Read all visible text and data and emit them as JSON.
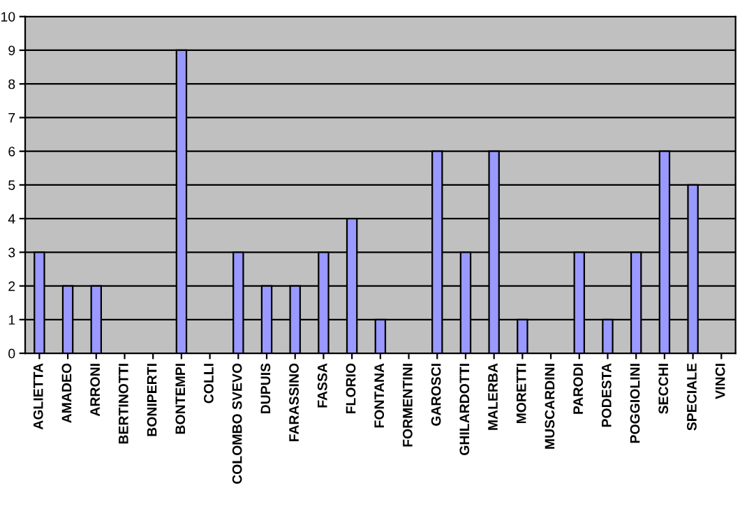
{
  "chart_data": {
    "type": "bar",
    "categories": [
      "AGLIETTA",
      "AMADEO",
      "ARRONI",
      "BERTINOTTI",
      "BONIPERTI",
      "BONTEMPI",
      "COLLI",
      "COLOMBO SVEVO",
      "DUPUIS",
      "FARASSINO",
      "FASSA",
      "FLORIO",
      "FONTANA",
      "FORMENTINI",
      "GAROSCI",
      "GHILARDOTTI",
      "MALERBA",
      "MORETTI",
      "MUSCARDINI",
      "PARODI",
      "PODESTA",
      "POGGIOLINI",
      "SECCHI",
      "SPECIALE",
      "VINCI"
    ],
    "values": [
      3,
      2,
      2,
      0,
      0,
      9,
      0,
      3,
      2,
      2,
      3,
      4,
      1,
      0,
      6,
      3,
      6,
      1,
      0,
      3,
      1,
      3,
      6,
      5,
      0
    ],
    "color": "#9999ff",
    "ylim": [
      0,
      10
    ],
    "yticks": [
      0,
      1,
      2,
      3,
      4,
      5,
      6,
      7,
      8,
      9,
      10
    ],
    "grid": "y",
    "legend": false
  }
}
